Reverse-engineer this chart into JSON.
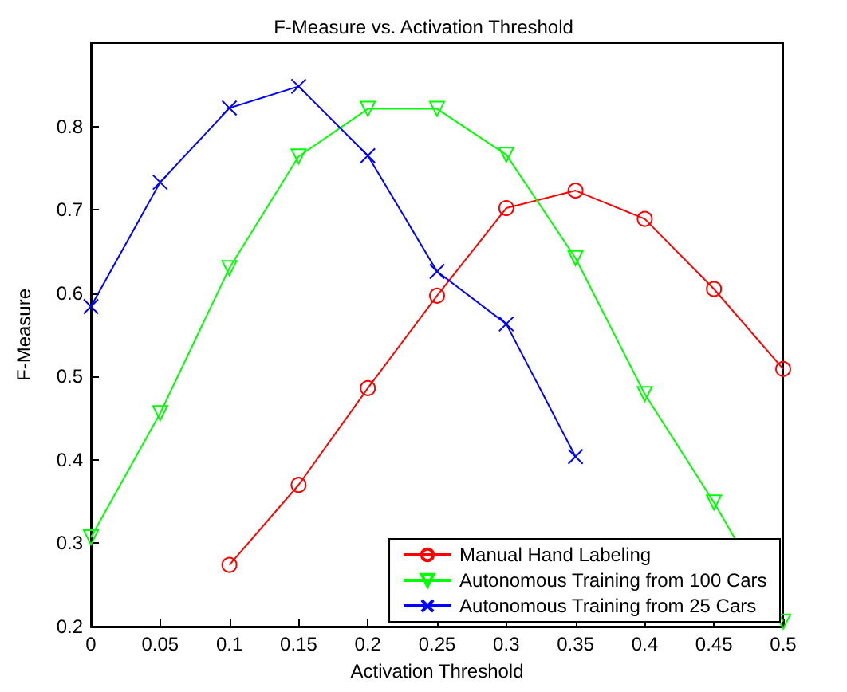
{
  "chart_data": {
    "type": "line",
    "title": "F-Measure vs. Activation Threshold",
    "xlabel": "Activation Threshold",
    "ylabel": "F-Measure",
    "x": [
      0,
      0.05,
      0.1,
      0.15,
      0.2,
      0.25,
      0.3,
      0.35,
      0.4,
      0.45,
      0.5
    ],
    "series": [
      {
        "name": "Manual Hand Labeling",
        "color": "#ff0000",
        "marker": "circle",
        "values": [
          null,
          null,
          0.274,
          0.37,
          0.486,
          0.597,
          0.702,
          0.723,
          0.689,
          0.605,
          0.509
        ]
      },
      {
        "name": "Autonomous Training from 100 Cars",
        "color": "#00ff00",
        "marker": "triangle",
        "values": [
          0.307,
          0.456,
          0.63,
          0.764,
          0.821,
          0.821,
          0.766,
          0.642,
          0.479,
          0.349,
          0.206
        ]
      },
      {
        "name": "Autonomous Training from 25 Cars",
        "color": "#0000ff",
        "marker": "cross",
        "values": [
          0.584,
          0.733,
          0.822,
          0.848,
          0.765,
          0.626,
          0.563,
          0.404,
          null,
          null,
          null
        ]
      }
    ],
    "xlim": [
      0,
      0.5
    ],
    "xticks": [
      0,
      0.05,
      0.1,
      0.15,
      0.2,
      0.25,
      0.3,
      0.35,
      0.4,
      0.45,
      0.5
    ],
    "ylim": [
      0.2,
      0.9
    ],
    "yticks": [
      0.2,
      0.3,
      0.4,
      0.5,
      0.6,
      0.7,
      0.8
    ],
    "grid": false,
    "legend": "bottom right",
    "line_style": "solid"
  }
}
